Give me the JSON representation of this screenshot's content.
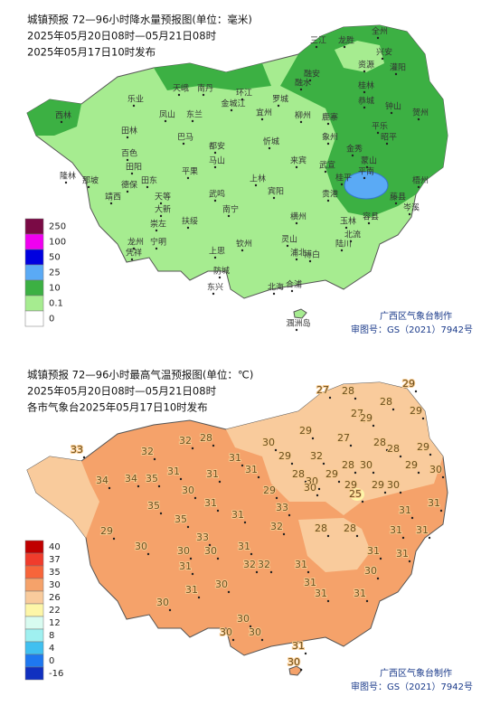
{
  "maps": [
    {
      "title": "城镇预报 72—96小时降水量预报图(单位：毫米)",
      "period": "2025年05月20日08时—05月21日08时",
      "issued": "2025年05月17日10时发布",
      "legend": [
        {
          "label": "250",
          "color": "#7a0a45"
        },
        {
          "label": "100",
          "color": "#f000f0"
        },
        {
          "label": "50",
          "color": "#0000e0"
        },
        {
          "label": "25",
          "color": "#5aaaf5"
        },
        {
          "label": "10",
          "color": "#3cb043"
        },
        {
          "label": "0.1",
          "color": "#a6ec90"
        },
        {
          "label": "0",
          "color": "#ffffff"
        }
      ],
      "places": [
        "三江",
        "龙胜",
        "全州",
        "兴安",
        "资源",
        "融安",
        "融水",
        "灌阳",
        "桂林",
        "恭城",
        "天峨",
        "南丹",
        "乐业",
        "凤山",
        "东兰",
        "环江",
        "金城江",
        "罗城",
        "宜州",
        "柳州",
        "鹿寨",
        "西林",
        "田林",
        "巴马",
        "都安",
        "忻城",
        "象州",
        "平乐",
        "钟山",
        "贺州",
        "百色",
        "田阳",
        "田东",
        "平果",
        "马山",
        "来宾",
        "武宣",
        "金秀",
        "蒙山",
        "昭平",
        "隆林",
        "德保",
        "靖西",
        "那坡",
        "天等",
        "大新",
        "武鸣",
        "上林",
        "宾阳",
        "桂平",
        "平南",
        "藤县",
        "梧州",
        "岑溪",
        "南宁",
        "横州",
        "贵港",
        "容县",
        "崇左",
        "扶绥",
        "龙州",
        "凭祥",
        "宁明",
        "上思",
        "钦州",
        "灵山",
        "浦北",
        "玉林",
        "北流",
        "陆川",
        "博白",
        "防城",
        "东兴",
        "合浦",
        "北海",
        "涠洲岛"
      ],
      "credits": [
        "广西区气象台制作",
        "审图号：GS（2021）7942号"
      ]
    },
    {
      "title": "城镇预报 72—96小时最高气温预报图(单位：℃)",
      "period": "2025年05月20日08时—05月21日08时",
      "issued": "各市气象台2025年05月17日10时发布",
      "legend": [
        {
          "label": "40",
          "color": "#c00000"
        },
        {
          "label": "37",
          "color": "#f03c2c"
        },
        {
          "label": "35",
          "color": "#f7653a"
        },
        {
          "label": "30",
          "color": "#f5a26a"
        },
        {
          "label": "26",
          "color": "#f9cb9c"
        },
        {
          "label": "22",
          "color": "#fdf6a8"
        },
        {
          "label": "12",
          "color": "#d8fbf0"
        },
        {
          "label": "8",
          "color": "#9ff0f0"
        },
        {
          "label": "4",
          "color": "#40c0f0"
        },
        {
          "label": "0",
          "color": "#1e78f0"
        },
        {
          "label": "-16",
          "color": "#1030c0"
        }
      ],
      "temperatures": [
        33,
        32,
        28,
        27,
        28,
        29,
        28,
        27,
        29,
        27,
        28,
        29,
        29,
        28,
        29,
        30,
        32,
        31,
        31,
        30,
        29,
        28,
        30,
        29,
        28,
        30,
        29,
        34,
        31,
        31,
        32,
        29,
        30,
        29,
        25,
        34,
        35,
        30,
        29,
        30,
        31,
        31,
        33,
        35,
        35,
        31,
        31,
        29,
        33,
        30,
        32,
        28,
        28,
        31,
        31,
        30,
        30,
        31,
        32,
        32,
        31,
        31,
        31,
        31,
        30,
        31,
        30,
        31,
        30,
        31,
        31,
        30,
        30,
        30,
        31,
        30
      ],
      "credits": [
        "广西区气象台制作",
        "审图号：GS（2021）7942号"
      ]
    }
  ]
}
